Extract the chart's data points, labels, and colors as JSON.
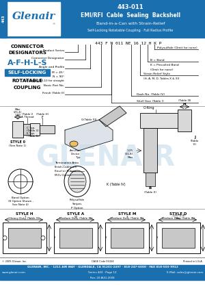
{
  "title_num": "443-011",
  "title_line1": "EMI/RFI  Cable  Sealing  Backshell",
  "title_line2": "Band-in-a-Can with Strain-Relief",
  "title_line3": "Self-Locking Rotatable Coupling · Full Radius Profile",
  "header_bg": "#1a6faf",
  "logo_text": "Glenair",
  "tab_text": "443",
  "connector_title1": "CONNECTOR",
  "connector_title2": "DESIGNATORS",
  "connector_codes": "A-F-H-L-S",
  "self_locking": "SELF-LOCKING",
  "rotatable": "ROTATABLE",
  "coupling": "COUPLING",
  "part_number_label": "443 F N 011 NE 16 12 H K P",
  "footer_line1": "GLENAIR, INC. · 1211 AIR WAY · GLENDALE, CA 91201-2497 · 818-247-6000 · FAX 818-500-9912",
  "footer_www": "www.glenair.com",
  "footer_series": "Series 443 · Page 12",
  "footer_email": "E-Mail: sales@glenair.com",
  "footer_rev": "Rev: 20-AUG-2008",
  "copyright": "© 2005 Glenair, Inc.",
  "cage_code": "CAGE Code 06324",
  "printed": "Printed in U.S.A.",
  "style_h": "STYLE H",
  "style_h_sub": "Heavy Duty (Table X)",
  "style_a": "STYLE A",
  "style_a_sub": "Medium Duty (Table XI)",
  "style_m": "STYLE M",
  "style_m_sub": "Medium Duty (Table XI)",
  "style_d": "STYLE D",
  "style_d_sub": "Medium Duty (Table XI)",
  "bg_color": "#ffffff",
  "blue_color": "#1a6faf",
  "light_blue_wm": "#b8d4e8"
}
